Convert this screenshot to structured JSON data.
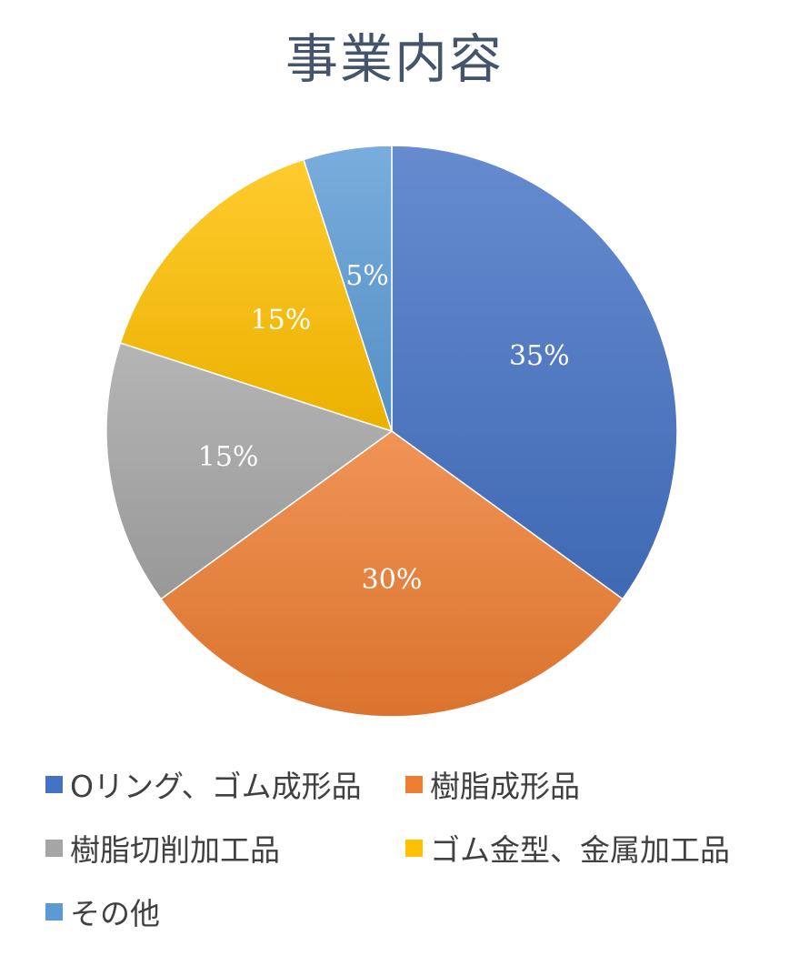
{
  "chart_data": {
    "type": "pie",
    "title": "事業内容",
    "categories": [
      "Oリング、ゴム成形品",
      "樹脂成形品",
      "樹脂切削加工品",
      "ゴム金型、金属加工品",
      "その他"
    ],
    "values": [
      35,
      30,
      15,
      15,
      5
    ],
    "data_labels": [
      "35%",
      "30%",
      "15%",
      "15%",
      "5%"
    ],
    "colors": [
      "#4472c4",
      "#ed7d31",
      "#a5a5a5",
      "#ffc000",
      "#5b9bd5"
    ],
    "start_angle": "12 o'clock",
    "direction": "clockwise",
    "legend_position": "bottom"
  }
}
